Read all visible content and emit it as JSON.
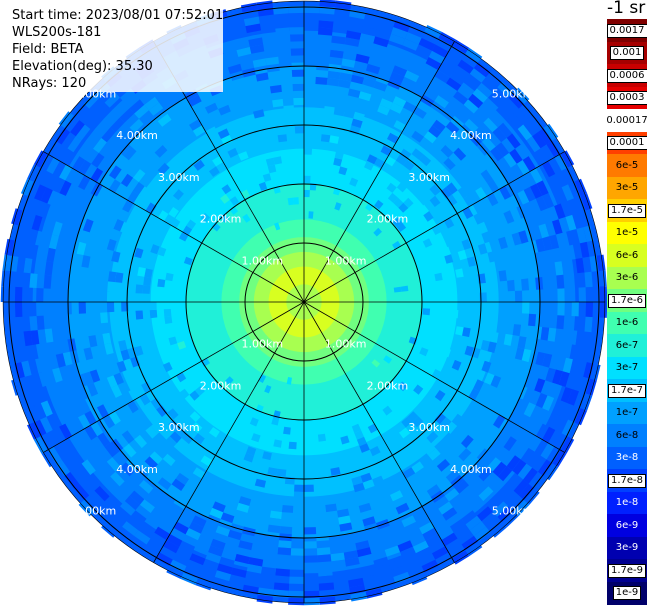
{
  "info": {
    "start_time": "Start time: 2023/08/01 07:52:01",
    "station": "WLS200s-181",
    "field": "Field: BETA",
    "elevation": "Elevation(deg): 35.30",
    "nrays": "NRays: 120"
  },
  "colorbar": {
    "unit": "-1 sr",
    "levels": [
      {
        "label": "0.0017",
        "color": "#7f0000",
        "style": "boxed"
      },
      {
        "label": "0.001",
        "color": "#a50000",
        "style": "boxed"
      },
      {
        "label": "0.0006",
        "color": "#c80000",
        "style": "boxed"
      },
      {
        "label": "0.0003",
        "color": "#e60000",
        "style": "boxed"
      },
      {
        "label": "0.00017",
        "color": "#ffffff",
        "style": "plain"
      },
      {
        "label": "0.0001",
        "color": "#ff4000",
        "style": "boxed"
      },
      {
        "label": "6e-5",
        "color": "#ff7a00",
        "style": "dark"
      },
      {
        "label": "3e-5",
        "color": "#ffa600",
        "style": "dark"
      },
      {
        "label": "1.7e-5",
        "color": "#ffd000",
        "style": "boxed"
      },
      {
        "label": "1e-5",
        "color": "#ffff00",
        "style": "dark"
      },
      {
        "label": "6e-6",
        "color": "#d8ff20",
        "style": "dark"
      },
      {
        "label": "3e-6",
        "color": "#a8ff50",
        "style": "dark"
      },
      {
        "label": "1.7e-6",
        "color": "#70ff80",
        "style": "boxed"
      },
      {
        "label": "1e-6",
        "color": "#40ffb0",
        "style": "dark"
      },
      {
        "label": "6e-7",
        "color": "#20f0d8",
        "style": "dark"
      },
      {
        "label": "3e-7",
        "color": "#00e0ff",
        "style": "dark"
      },
      {
        "label": "1.7e-7",
        "color": "#00c0ff",
        "style": "boxed"
      },
      {
        "label": "1e-7",
        "color": "#00a0ff",
        "style": "dark"
      },
      {
        "label": "6e-8",
        "color": "#0080ff",
        "style": "dark"
      },
      {
        "label": "3e-8",
        "color": "#0060ff",
        "style": "light"
      },
      {
        "label": "1.7e-8",
        "color": "#0040ff",
        "style": "boxed"
      },
      {
        "label": "1e-8",
        "color": "#0020ff",
        "style": "light"
      },
      {
        "label": "6e-9",
        "color": "#0000e0",
        "style": "light"
      },
      {
        "label": "3e-9",
        "color": "#0000b0",
        "style": "light"
      },
      {
        "label": "1.7e-9",
        "color": "#000090",
        "style": "boxed"
      },
      {
        "label": "1e-9",
        "color": "#00006a",
        "style": "boxed"
      }
    ]
  },
  "ppi": {
    "range_labels": [
      "1.00km",
      "2.00km",
      "3.00km",
      "4.00km",
      "5.00km"
    ],
    "ring_spacing_km": 1.0,
    "max_range_km": 5.1,
    "bands": [
      {
        "r_km": [
          0.0,
          0.3
        ],
        "color": "#a8ff50"
      },
      {
        "r_km": [
          0.3,
          0.6
        ],
        "color": "#d8ff20"
      },
      {
        "r_km": [
          0.6,
          0.85
        ],
        "color": "#a8ff50"
      },
      {
        "r_km": [
          0.85,
          1.1
        ],
        "color": "#70ff80"
      },
      {
        "r_km": [
          1.1,
          1.4
        ],
        "color": "#40ffb0"
      },
      {
        "r_km": [
          1.4,
          2.0
        ],
        "color": "#20f0d8"
      },
      {
        "r_km": [
          2.0,
          2.6
        ],
        "color": "#00e0ff"
      },
      {
        "r_km": [
          2.6,
          3.3
        ],
        "color": "#00c0ff"
      },
      {
        "r_km": [
          3.3,
          4.0
        ],
        "color": "#00a0ff"
      },
      {
        "r_km": [
          4.0,
          4.6
        ],
        "color": "#0080ff"
      },
      {
        "r_km": [
          4.6,
          5.1
        ],
        "color": "#0060ff"
      }
    ]
  }
}
